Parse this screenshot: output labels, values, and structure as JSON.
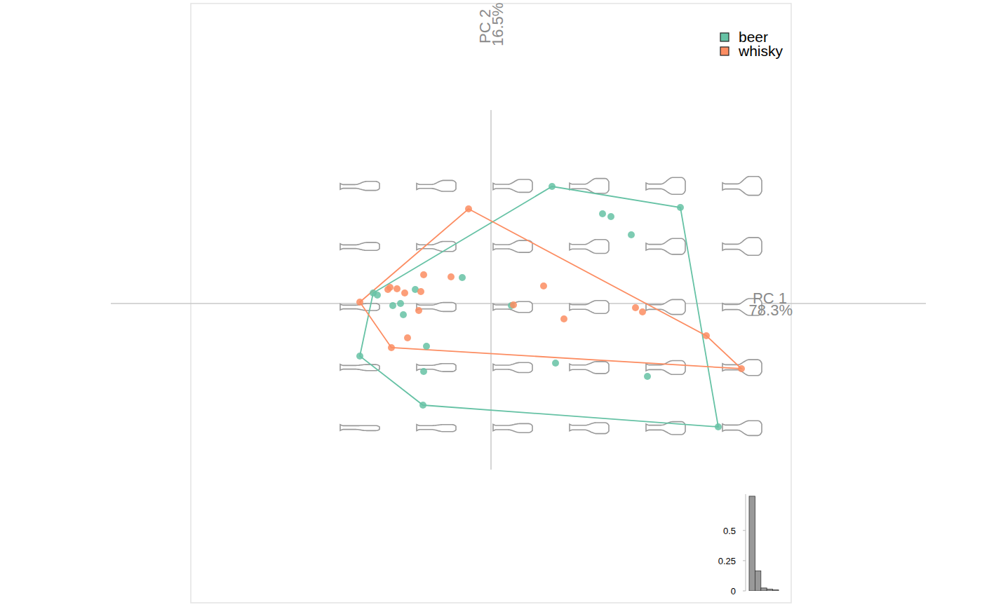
{
  "chart_data": [
    {
      "type": "scatter",
      "x_label": [
        "PC 1",
        "78.3%"
      ],
      "y_label": [
        "PC 2",
        "16.5%"
      ],
      "xlim": [
        -4.28,
        4.28
      ],
      "ylim": [
        -4.27,
        4.28
      ],
      "xticks": [],
      "yticks": [],
      "tick_labels": false,
      "grid": false,
      "legend": "top-right",
      "series": [
        {
          "name": "beer",
          "color": "#66c2a5",
          "marker": "circle",
          "x": [
            0.87,
            2.7,
            1.59,
            1.71,
            2.0,
            -0.41,
            -1.62,
            -1.68,
            -1.08,
            -1.4,
            -1.29,
            -1.25,
            0.29,
            -0.92,
            -1.87,
            -0.96,
            0.92,
            2.23,
            -0.97,
            3.24
          ],
          "values": [
            1.67,
            1.37,
            1.28,
            1.24,
            0.98,
            0.37,
            0.12,
            0.15,
            0.2,
            -0.03,
            0.0,
            -0.16,
            -0.03,
            -0.61,
            -0.75,
            -0.97,
            -0.85,
            -1.04,
            -1.45,
            -1.76
          ]
        },
        {
          "name": "whisky",
          "color": "#fc8d62",
          "marker": "circle",
          "x": [
            -0.32,
            -0.96,
            -0.57,
            0.75,
            -1.44,
            -1.47,
            -1.34,
            -1.23,
            -1.0,
            -1.87,
            -1.03,
            0.32,
            1.04,
            2.06,
            2.16,
            -1.19,
            -1.42,
            3.07,
            3.57
          ],
          "values": [
            1.35,
            0.41,
            0.38,
            0.25,
            0.23,
            0.2,
            0.21,
            0.15,
            0.17,
            0.02,
            -0.1,
            -0.02,
            -0.22,
            -0.06,
            -0.12,
            -0.49,
            -0.63,
            -0.46,
            -0.93
          ]
        }
      ]
    },
    {
      "type": "bar",
      "categories": [
        null,
        null,
        null,
        null,
        null
      ],
      "values": [
        0.783,
        0.165,
        0.024,
        0.015,
        0.008
      ],
      "color": "#999999",
      "ylim": [
        0,
        0.8
      ],
      "yticks": [
        0,
        0.25,
        0.5
      ],
      "tick_labels": "y"
    }
  ]
}
